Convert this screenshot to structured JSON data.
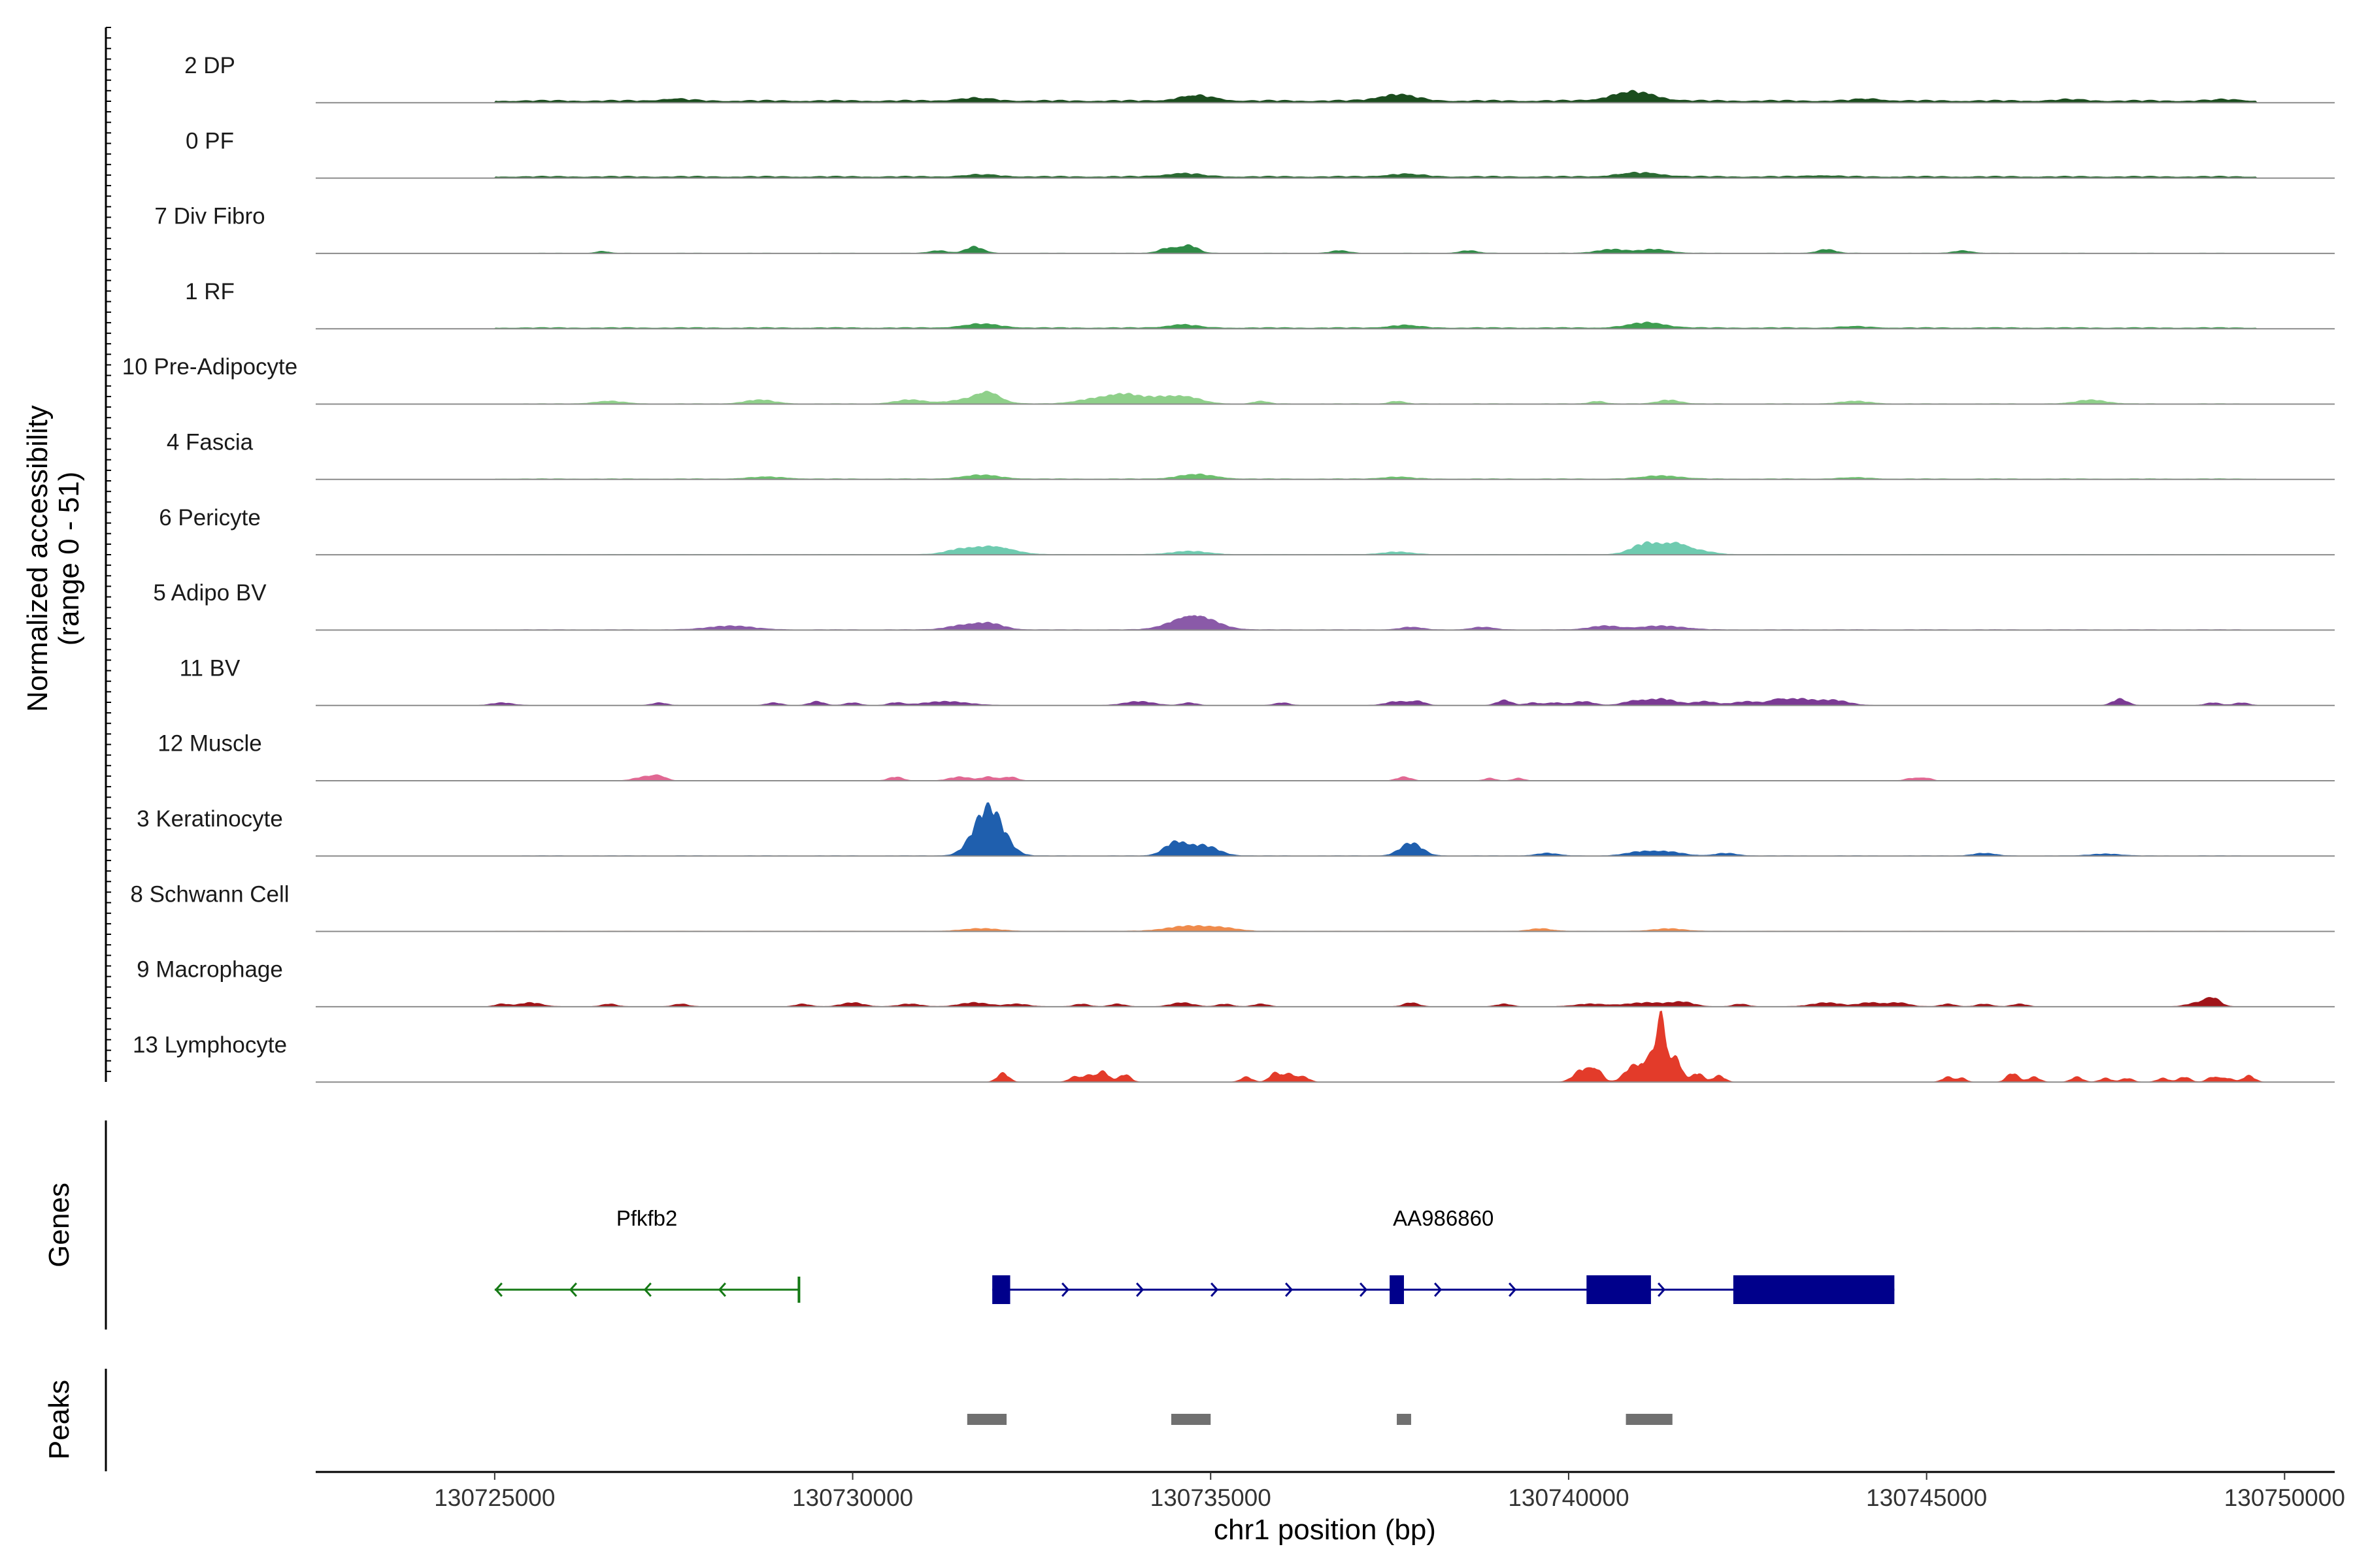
{
  "chart_data": {
    "type": "genome_coverage_tracks",
    "chromosome": "chr1",
    "xlim": [
      130722500,
      130750700
    ],
    "xlabel": "chr1 position (bp)",
    "x_ticks": [
      130725000,
      130730000,
      130735000,
      130740000,
      130745000,
      130750000
    ],
    "x_tick_labels": [
      "130725000",
      "130730000",
      "130735000",
      "130740000",
      "130745000",
      "130750000"
    ],
    "ylabel_line1": "Normalized accessibility",
    "ylabel_line2": "(range 0 - 51)",
    "y_range": [
      0,
      51
    ],
    "tracks": [
      {
        "name": "2 DP",
        "color": "#1b4d1e",
        "baseline": 2,
        "peaks": [
          [
            130727500,
            1.5,
            200
          ],
          [
            130731700,
            2,
            250
          ],
          [
            130734800,
            4,
            250
          ],
          [
            130737600,
            5,
            250
          ],
          [
            130740900,
            7,
            300
          ],
          [
            130744200,
            1.5,
            200
          ],
          [
            130747000,
            1,
            200
          ],
          [
            130749200,
            1,
            200
          ]
        ]
      },
      {
        "name": "0 PF",
        "color": "#2b6b33",
        "baseline": 1.5,
        "peaks": [
          [
            130731800,
            1.5,
            250
          ],
          [
            130734600,
            2.5,
            250
          ],
          [
            130737700,
            2,
            250
          ],
          [
            130741000,
            3,
            300
          ],
          [
            130743500,
            1,
            200
          ]
        ]
      },
      {
        "name": "7 Div Fibro",
        "color": "#2e8b46",
        "baseline": 0.3,
        "peaks": [
          [
            130726500,
            1.5,
            80
          ],
          [
            130731200,
            2,
            120
          ],
          [
            130731700,
            5,
            120
          ],
          [
            130734400,
            4,
            120
          ],
          [
            130734700,
            6,
            120
          ],
          [
            130736800,
            2,
            120
          ],
          [
            130738600,
            2,
            120
          ],
          [
            130740600,
            3,
            200
          ],
          [
            130741200,
            3,
            200
          ],
          [
            130743600,
            3,
            120
          ],
          [
            130745500,
            2,
            120
          ]
        ]
      },
      {
        "name": "1 RF",
        "color": "#3f9e50",
        "baseline": 1,
        "peaks": [
          [
            130731800,
            3,
            250
          ],
          [
            130734600,
            2.5,
            200
          ],
          [
            130737700,
            2,
            200
          ],
          [
            130741100,
            4,
            250
          ],
          [
            130744000,
            1,
            200
          ]
        ]
      },
      {
        "name": "10 Pre-Adipocyte",
        "color": "#8fd08a",
        "baseline": 0.4,
        "peaks": [
          [
            130726600,
            2,
            200
          ],
          [
            130728700,
            3,
            200
          ],
          [
            130730800,
            3,
            200
          ],
          [
            130731700,
            4,
            300
          ],
          [
            130731900,
            6,
            150
          ],
          [
            130733400,
            4,
            250
          ],
          [
            130733800,
            6,
            200
          ],
          [
            130734300,
            5,
            250
          ],
          [
            130734700,
            4,
            200
          ],
          [
            130735700,
            2,
            100
          ],
          [
            130737600,
            2,
            100
          ],
          [
            130740400,
            2,
            100
          ],
          [
            130741400,
            3,
            150
          ],
          [
            130744000,
            2,
            200
          ],
          [
            130747300,
            3,
            200
          ]
        ]
      },
      {
        "name": "4 Fascia",
        "color": "#6cbf6d",
        "baseline": 0.6,
        "peaks": [
          [
            130728800,
            1.5,
            250
          ],
          [
            130731800,
            3,
            250
          ],
          [
            130734800,
            3.5,
            250
          ],
          [
            130737600,
            1.5,
            200
          ],
          [
            130741300,
            2.5,
            250
          ],
          [
            130744000,
            1,
            200
          ]
        ]
      },
      {
        "name": "6 Pericyte",
        "color": "#6fcbb0",
        "baseline": 0.3,
        "peaks": [
          [
            130731500,
            4,
            200
          ],
          [
            130731900,
            5,
            200
          ],
          [
            130732200,
            2.5,
            200
          ],
          [
            130734700,
            2.5,
            250
          ],
          [
            130737600,
            2,
            200
          ],
          [
            130741100,
            9,
            200
          ],
          [
            130741500,
            7,
            150
          ],
          [
            130741800,
            3,
            200
          ]
        ]
      },
      {
        "name": "5 Adipo BV",
        "color": "#8a5aa8",
        "baseline": 0.4,
        "peaks": [
          [
            130728300,
            3,
            300
          ],
          [
            130731500,
            3,
            200
          ],
          [
            130731900,
            5,
            200
          ],
          [
            130734600,
            6,
            250
          ],
          [
            130734900,
            7,
            250
          ],
          [
            130737800,
            2,
            150
          ],
          [
            130738800,
            2,
            150
          ],
          [
            130740500,
            3,
            200
          ],
          [
            130741300,
            3,
            300
          ]
        ]
      },
      {
        "name": "11 BV",
        "color": "#7b3a94",
        "baseline": 0.1,
        "peaks": [
          [
            130725100,
            2,
            150
          ],
          [
            130727300,
            2,
            100
          ],
          [
            130728900,
            2,
            100
          ],
          [
            130729500,
            3,
            100
          ],
          [
            130730000,
            2,
            100
          ],
          [
            130730600,
            2,
            100
          ],
          [
            130731300,
            3,
            300
          ],
          [
            130734000,
            3,
            200
          ],
          [
            130734700,
            2,
            100
          ],
          [
            130736000,
            2,
            100
          ],
          [
            130737600,
            3,
            150
          ],
          [
            130737900,
            3,
            100
          ],
          [
            130739100,
            4,
            100
          ],
          [
            130739500,
            2,
            100
          ],
          [
            130739800,
            2,
            100
          ],
          [
            130740200,
            3,
            150
          ],
          [
            130740900,
            3,
            150
          ],
          [
            130741300,
            5,
            200
          ],
          [
            130741900,
            3,
            150
          ],
          [
            130742500,
            3,
            200
          ],
          [
            130742900,
            3,
            100
          ],
          [
            130743200,
            5,
            200
          ],
          [
            130743700,
            4,
            200
          ],
          [
            130747700,
            5,
            100
          ],
          [
            130749000,
            2,
            100
          ],
          [
            130749400,
            2,
            100
          ]
        ]
      },
      {
        "name": "12 Muscle",
        "color": "#e16893",
        "baseline": 0,
        "peaks": [
          [
            130727100,
            3,
            150
          ],
          [
            130727300,
            3,
            100
          ],
          [
            130730600,
            3,
            100
          ],
          [
            130731500,
            3,
            150
          ],
          [
            130731900,
            3,
            100
          ],
          [
            130732200,
            3,
            100
          ],
          [
            130737700,
            3,
            100
          ],
          [
            130738900,
            2,
            80
          ],
          [
            130739300,
            2,
            80
          ],
          [
            130744800,
            2,
            100
          ],
          [
            130745000,
            2,
            80
          ]
        ]
      },
      {
        "name": "3 Keratinocyte",
        "color": "#1f5fae",
        "baseline": 0.3,
        "peaks": [
          [
            130731900,
            38,
            200
          ],
          [
            130734500,
            10,
            150
          ],
          [
            130734900,
            8,
            200
          ],
          [
            130737800,
            10,
            150
          ],
          [
            130739700,
            2,
            150
          ],
          [
            130741000,
            3,
            200
          ],
          [
            130741400,
            3,
            200
          ],
          [
            130742200,
            2,
            150
          ],
          [
            130745800,
            2,
            150
          ],
          [
            130747500,
            1.5,
            200
          ]
        ]
      },
      {
        "name": "8 Schwann Cell",
        "color": "#ef8b4c",
        "baseline": 0.3,
        "peaks": [
          [
            130731800,
            2,
            250
          ],
          [
            130734700,
            4,
            300
          ],
          [
            130735200,
            2,
            200
          ],
          [
            130739600,
            2,
            150
          ],
          [
            130741400,
            2,
            200
          ]
        ]
      },
      {
        "name": "9 Macrophage",
        "color": "#a01419",
        "baseline": 0.2,
        "peaks": [
          [
            130725100,
            2,
            100
          ],
          [
            130725500,
            3,
            150
          ],
          [
            130726600,
            2,
            100
          ],
          [
            130727600,
            2,
            100
          ],
          [
            130729300,
            2,
            100
          ],
          [
            130730000,
            3,
            150
          ],
          [
            130730800,
            2,
            150
          ],
          [
            130731700,
            3,
            200
          ],
          [
            130732300,
            2,
            150
          ],
          [
            130733200,
            2,
            100
          ],
          [
            130733700,
            2,
            100
          ],
          [
            130734600,
            3,
            150
          ],
          [
            130735200,
            2,
            100
          ],
          [
            130735700,
            2,
            100
          ],
          [
            130737800,
            3,
            100
          ],
          [
            130739100,
            2,
            100
          ],
          [
            130740300,
            2,
            200
          ],
          [
            130741100,
            3,
            300
          ],
          [
            130741600,
            3,
            150
          ],
          [
            130742400,
            2,
            100
          ],
          [
            130743600,
            3,
            200
          ],
          [
            130744200,
            3,
            150
          ],
          [
            130744600,
            3,
            150
          ],
          [
            130745300,
            2,
            100
          ],
          [
            130745800,
            2,
            100
          ],
          [
            130746300,
            2,
            100
          ],
          [
            130748800,
            3,
            150
          ],
          [
            130749000,
            6,
            100
          ]
        ]
      },
      {
        "name": "13 Lymphocyte",
        "color": "#e33b2a",
        "baseline": 0,
        "peaks": [
          [
            130732100,
            7,
            80
          ],
          [
            130733100,
            4,
            80
          ],
          [
            130733300,
            5,
            80
          ],
          [
            130733500,
            8,
            80
          ],
          [
            130733800,
            6,
            80
          ],
          [
            130735500,
            4,
            80
          ],
          [
            130735900,
            7,
            80
          ],
          [
            130736100,
            6,
            80
          ],
          [
            130736300,
            4,
            80
          ],
          [
            130740200,
            10,
            120
          ],
          [
            130740400,
            8,
            80
          ],
          [
            130740900,
            12,
            120
          ],
          [
            130741200,
            22,
            120
          ],
          [
            130741300,
            35,
            60
          ],
          [
            130741500,
            18,
            80
          ],
          [
            130741800,
            7,
            80
          ],
          [
            130742100,
            5,
            80
          ],
          [
            130745300,
            4,
            80
          ],
          [
            130745500,
            3,
            60
          ],
          [
            130746200,
            7,
            80
          ],
          [
            130746500,
            4,
            80
          ],
          [
            130747100,
            4,
            80
          ],
          [
            130747500,
            3,
            80
          ],
          [
            130747800,
            3,
            80
          ],
          [
            130748300,
            3,
            80
          ],
          [
            130748600,
            4,
            80
          ],
          [
            130749000,
            4,
            80
          ],
          [
            130749200,
            3,
            80
          ],
          [
            130749500,
            5,
            80
          ]
        ]
      }
    ],
    "genes_label": "Genes",
    "genes": [
      {
        "name": "Pfkfb2",
        "strand": "-",
        "start": 130725000,
        "end": 130729250,
        "color": "#157915",
        "exons": []
      },
      {
        "name": "AA986860",
        "strand": "+",
        "start": 130731950,
        "end": 130744550,
        "color": "#00008b",
        "exons": [
          [
            130731950,
            130732200
          ],
          [
            130737500,
            130737700
          ],
          [
            130740250,
            130741150
          ],
          [
            130742300,
            130744550
          ]
        ]
      }
    ],
    "peaks_label": "Peaks",
    "peak_regions": [
      [
        130731600,
        130732150
      ],
      [
        130734450,
        130735000
      ],
      [
        130737600,
        130737800
      ],
      [
        130740800,
        130741450
      ]
    ]
  }
}
